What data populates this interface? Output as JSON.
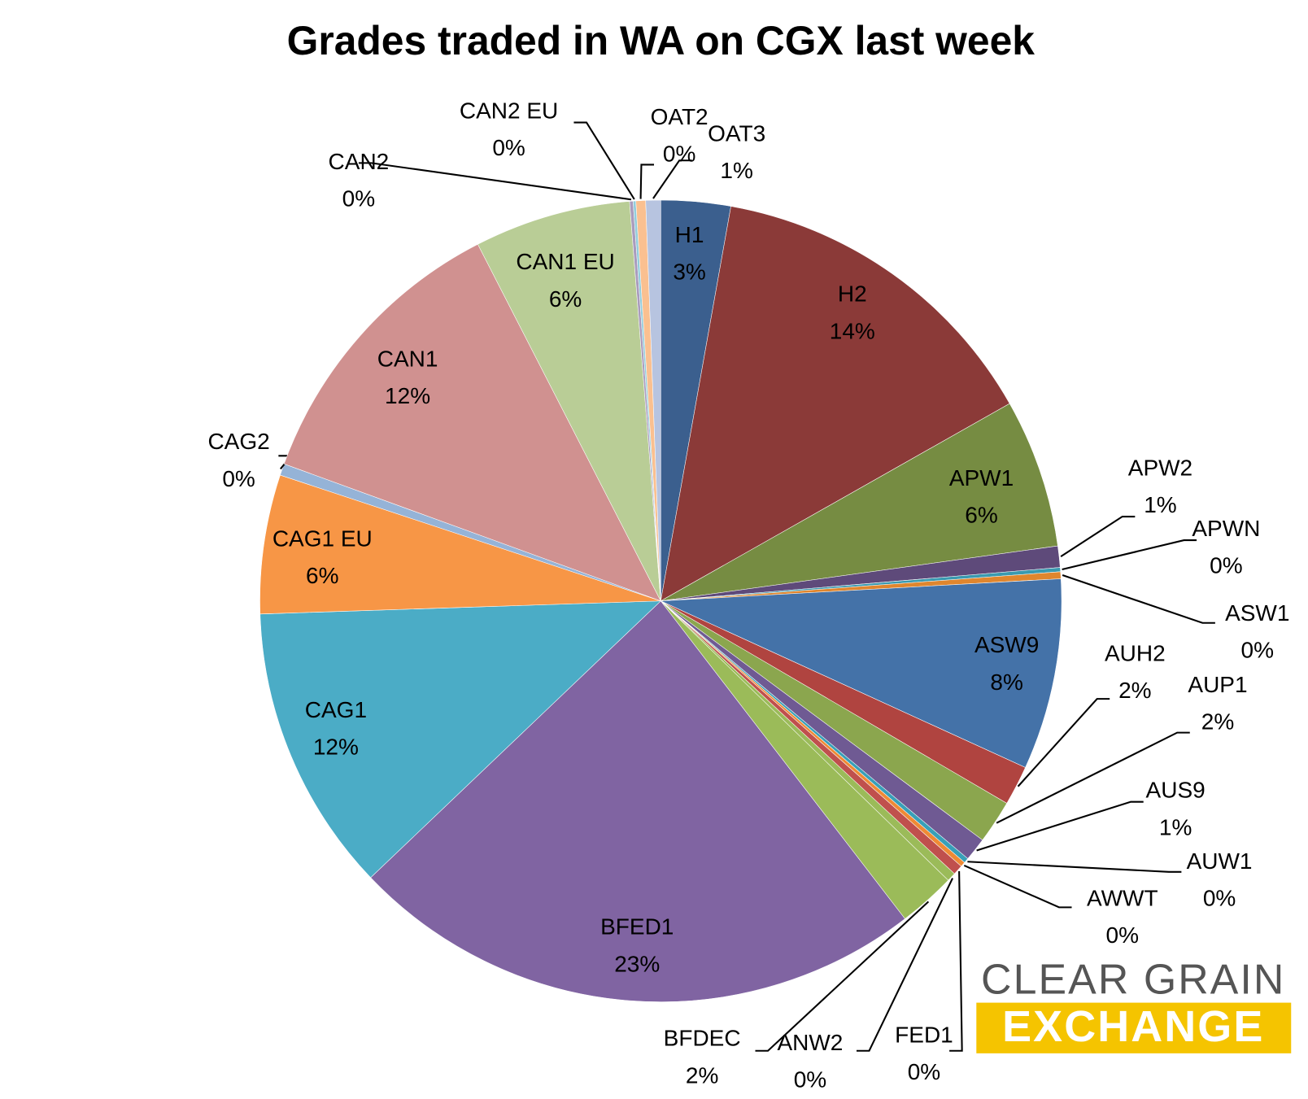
{
  "chart_data": {
    "type": "pie",
    "title": "Grades traded in WA on CGX last week",
    "categories": [
      "H1",
      "H2",
      "APW1",
      "APW2",
      "APWN",
      "ASW1",
      "ASW9",
      "AUH2",
      "AUP1",
      "AUS9",
      "AUW1",
      "AWWT",
      "FED1",
      "ANW2",
      "BFDEC",
      "BFED1",
      "CAG1",
      "CAG1 EU",
      "CAG2",
      "CAN1",
      "CAN1 EU",
      "CAN2",
      "CAN2 EU",
      "OAT2",
      "OAT3"
    ],
    "values": [
      2.8,
      14.0,
      6.0,
      0.86,
      0.17,
      0.28,
      7.7,
      1.6,
      1.75,
      0.94,
      0.2,
      0.2,
      0.4,
      0.36,
      2.3,
      23.3,
      11.6,
      5.6,
      0.47,
      11.9,
      6.3,
      0.14,
      0.11,
      0.39,
      0.6
    ],
    "value_labels": [
      "3%",
      "14%",
      "6%",
      "1%",
      "0%",
      "0%",
      "8%",
      "2%",
      "2%",
      "1%",
      "0%",
      "0%",
      "0%",
      "0%",
      "2%",
      "23%",
      "12%",
      "6%",
      "0%",
      "12%",
      "6%",
      "0%",
      "0%",
      "0%",
      "1%"
    ],
    "colors": [
      "#3b5f8e",
      "#8b3a38",
      "#768c42",
      "#5e4a7a",
      "#3a9ab0",
      "#e0862e",
      "#4472a8",
      "#b04440",
      "#8ba64e",
      "#6f5a93",
      "#38a0b8",
      "#ef8a35",
      "#c0504d",
      "#9bbb59",
      "#9bbb59",
      "#8064a2",
      "#4bacc6",
      "#f79646",
      "#95b3d7",
      "#d09190",
      "#b9cd96",
      "#a99bbd",
      "#92cddc",
      "#fac090",
      "#b7c4e0"
    ]
  },
  "logo": {
    "line1": "CLEAR GRAIN",
    "line2": "EXCHANGE"
  }
}
